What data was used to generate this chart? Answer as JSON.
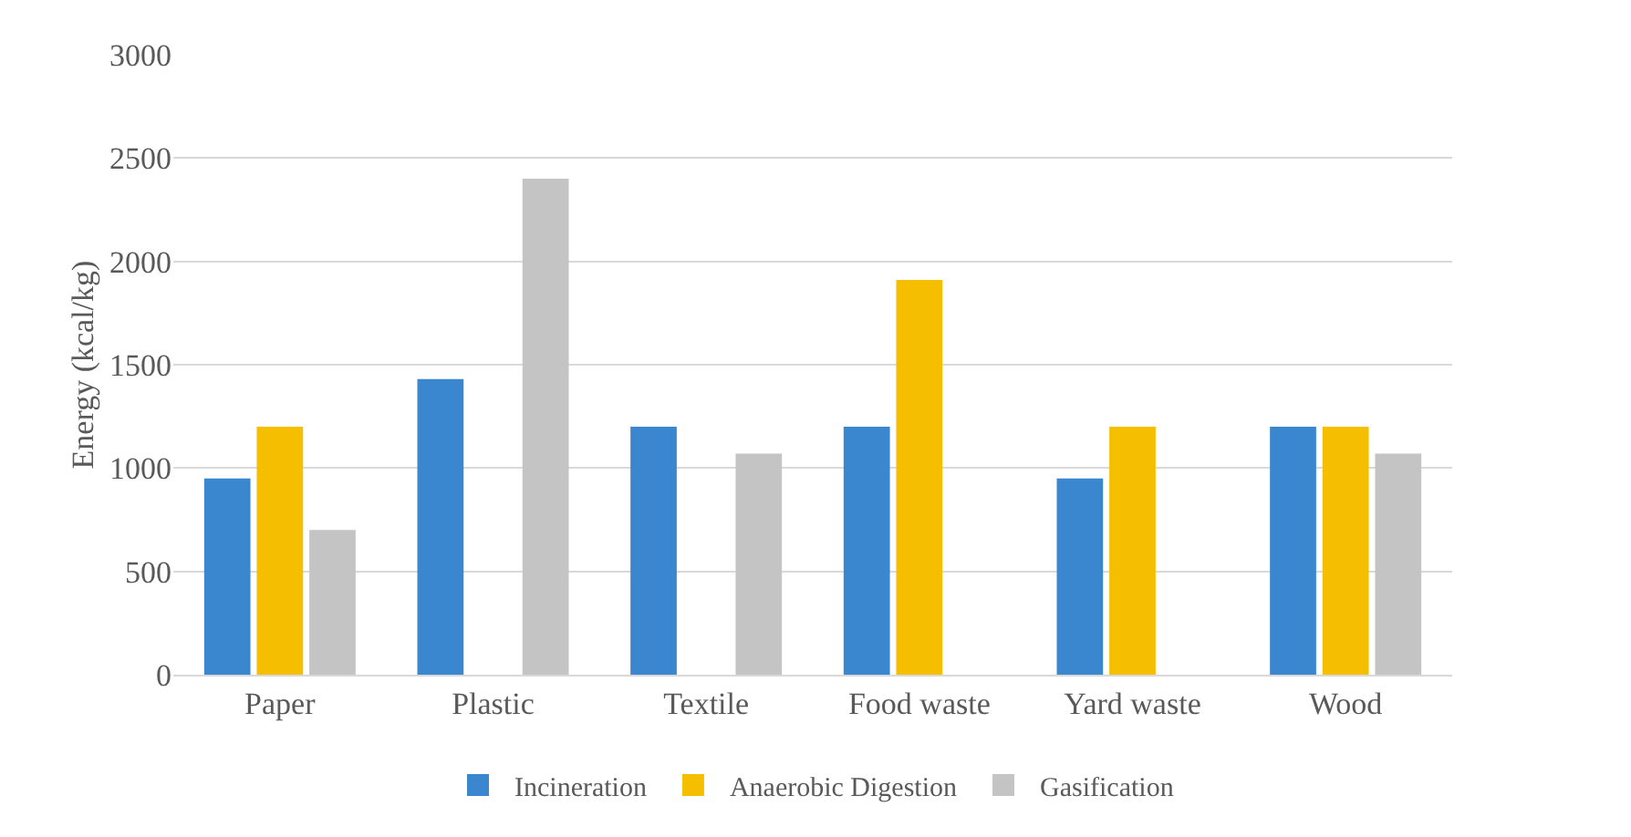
{
  "chart_data": {
    "type": "bar",
    "ylabel": "Energy (kcal/kg)",
    "categories": [
      "Paper",
      "Plastic",
      "Textile",
      "Food waste",
      "Yard waste",
      "Wood"
    ],
    "series": [
      {
        "name": "Incineration",
        "color": "#3a87d0",
        "values": [
          950,
          1430,
          1200,
          1200,
          950,
          1200
        ]
      },
      {
        "name": "Anaerobic Digestion",
        "color": "#f5bf00",
        "values": [
          1200,
          null,
          null,
          1910,
          1200,
          1200
        ]
      },
      {
        "name": "Gasification",
        "color": "#c4c4c4",
        "values": [
          700,
          2400,
          1070,
          null,
          null,
          1070
        ]
      }
    ],
    "ylim": [
      0,
      3000
    ],
    "yticks": [
      0,
      500,
      1000,
      1500,
      2000,
      2500,
      3000
    ],
    "grid": "y",
    "legend": "bottom"
  }
}
